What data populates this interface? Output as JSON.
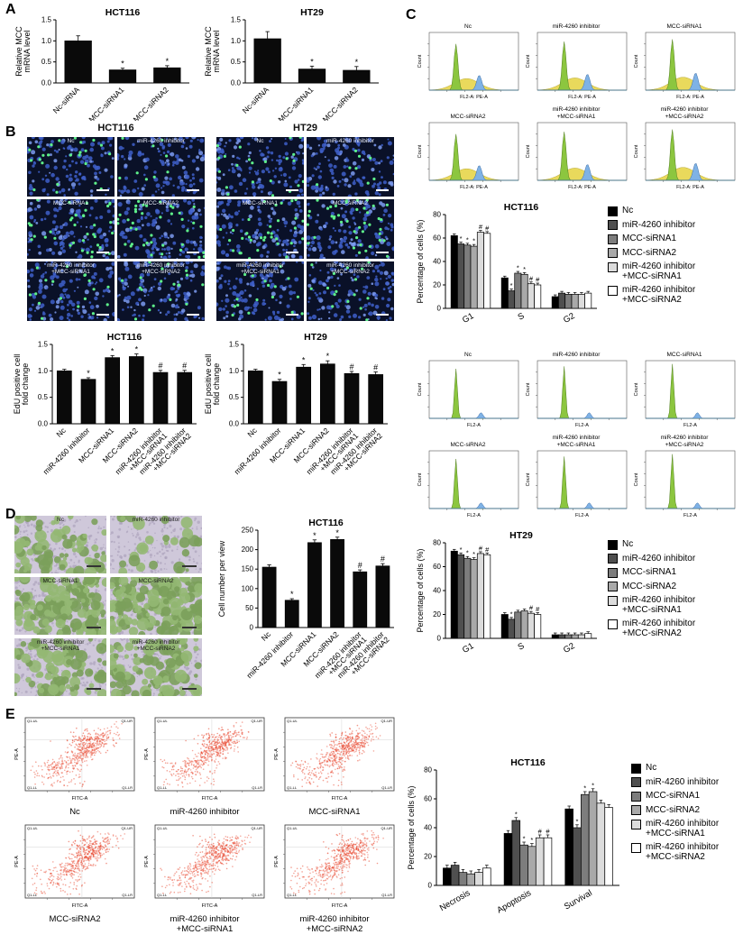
{
  "panels": {
    "A": "A",
    "B": "B",
    "C": "C",
    "D": "D",
    "E": "E"
  },
  "conditions": [
    "Nc",
    "miR-4260 inhibitor",
    "MCC-siRNA1",
    "MCC-siRNA2",
    "miR-4260 inhibitor\n+MCC-siRNA1",
    "miR-4260 inhibitor\n+MCC-siRNA2"
  ],
  "series_colors": [
    "#000000",
    "#4f4f4f",
    "#7d7d7d",
    "#a9a9a9",
    "#dcdcdc",
    "#ffffff"
  ],
  "panelB": {
    "col_titles": [
      "HCT116",
      "HT29"
    ]
  },
  "flow_cycle": {
    "ylabel": "Count",
    "xlabel_hct": "FL2-A: PE-A",
    "xlabel_ht": "FL2-A"
  },
  "flow_apoptosis": {
    "xlabel": "FITC-A",
    "ylabel": "PE-A",
    "quadrants": [
      "Q1-UL",
      "Q1-UR",
      "Q1-LL",
      "Q1-LR"
    ]
  },
  "chart_data": [
    {
      "id": "A-HCT116",
      "type": "bar",
      "title": "HCT116",
      "ylabel": "Relative MCC\nmRNA level",
      "ylim": [
        0,
        1.5
      ],
      "yticks": [
        "0.0",
        "0.5",
        "1.0",
        "1.5"
      ],
      "categories": [
        "Nc-siRNA",
        "MCC-siRNA1",
        "MCC-siRNA2"
      ],
      "values": [
        1.0,
        0.31,
        0.36
      ],
      "errors": [
        0.12,
        0.04,
        0.05
      ],
      "annotations": [
        "",
        "*",
        "*"
      ],
      "ml": 46,
      "mt": 16,
      "mb": 42,
      "rot": 45
    },
    {
      "id": "A-HT29",
      "type": "bar",
      "title": "HT29",
      "ylabel": "Relative MCC\nmRNA level",
      "ylim": [
        0,
        1.5
      ],
      "yticks": [
        "0.0",
        "0.5",
        "1.0",
        "1.5"
      ],
      "categories": [
        "Nc-siRNA",
        "MCC-siRNA1",
        "MCC-siRNA2"
      ],
      "values": [
        1.05,
        0.33,
        0.3
      ],
      "errors": [
        0.17,
        0.07,
        0.09
      ],
      "annotations": [
        "",
        "*",
        "*"
      ],
      "ml": 46,
      "mt": 16,
      "mb": 42,
      "rot": 45
    },
    {
      "id": "B-HCT116",
      "type": "bar",
      "title": "HCT116",
      "ylabel": "EdU positive cell\nfold change",
      "ylim": [
        0,
        1.5
      ],
      "yticks": [
        "0.0",
        "0.5",
        "1.0",
        "1.5"
      ],
      "categories": [
        "Nc",
        "miR-4260 inhibitor",
        "MCC-siRNA1",
        "MCC-siRNA2",
        "miR-4260 inhibitor\n+MCC-siRNA1",
        "miR-4260 inhibitor\n+MCC-siRNA2"
      ],
      "values": [
        1.0,
        0.84,
        1.25,
        1.27,
        0.97,
        0.97
      ],
      "errors": [
        0.03,
        0.03,
        0.04,
        0.05,
        0.04,
        0.04
      ],
      "annotations": [
        "",
        "*",
        "*",
        "*",
        "#",
        "#"
      ],
      "ml": 44,
      "mt": 16,
      "mb": 92,
      "rot": 45
    },
    {
      "id": "B-HT29",
      "type": "bar",
      "title": "HT29",
      "ylabel": "EdU positive cell\nfold change",
      "ylim": [
        0,
        1.5
      ],
      "yticks": [
        "0.0",
        "0.5",
        "1.0",
        "1.5"
      ],
      "categories": [
        "Nc",
        "miR-4260 inhibitor",
        "MCC-siRNA1",
        "MCC-siRNA2",
        "miR-4260 inhibitor\n+MCC-siRNA1",
        "miR-4260 inhibitor\n+MCC-siRNA2"
      ],
      "values": [
        1.0,
        0.8,
        1.07,
        1.13,
        0.95,
        0.93
      ],
      "errors": [
        0.03,
        0.04,
        0.05,
        0.06,
        0.04,
        0.05
      ],
      "annotations": [
        "",
        "*",
        "*",
        "*",
        "#",
        "#"
      ],
      "ml": 44,
      "mt": 16,
      "mb": 92,
      "rot": 45
    },
    {
      "id": "C-HCT116",
      "type": "grouped_bar",
      "title": "HCT116",
      "ylabel": "Percentage of cells (%)",
      "ylim": [
        0,
        80
      ],
      "yticks": [
        "0",
        "20",
        "40",
        "60",
        "80"
      ],
      "categories": [
        "G1",
        "S",
        "G2"
      ],
      "err": 1.5,
      "series": [
        {
          "name": "Nc",
          "values": [
            62,
            26,
            10
          ],
          "ann": [
            "",
            "",
            ""
          ]
        },
        {
          "name": "miR-4260 inhibitor",
          "values": [
            55,
            15,
            13
          ],
          "ann": [
            "*",
            "*",
            ""
          ]
        },
        {
          "name": "MCC-siRNA1",
          "values": [
            54,
            30,
            12
          ],
          "ann": [
            "*",
            "*",
            ""
          ]
        },
        {
          "name": "MCC-siRNA2",
          "values": [
            53,
            29,
            12
          ],
          "ann": [
            "*",
            "*",
            ""
          ]
        },
        {
          "name": "miR-4260 inhibitor\n+MCC-siRNA1",
          "values": [
            65,
            21,
            12
          ],
          "ann": [
            "#",
            "#",
            ""
          ]
        },
        {
          "name": "miR-4260 inhibitor\n+MCC-siRNA2",
          "values": [
            64,
            20,
            13
          ],
          "ann": [
            "#",
            "#",
            ""
          ]
        }
      ],
      "ml": 36,
      "mt": 14,
      "mb": 28,
      "rot": 30
    },
    {
      "id": "C-HT29",
      "type": "grouped_bar",
      "title": "HT29",
      "ylabel": "Percentage of cells (%)",
      "ylim": [
        0,
        80
      ],
      "yticks": [
        "0",
        "20",
        "40",
        "60",
        "80"
      ],
      "categories": [
        "G1",
        "S",
        "G2"
      ],
      "err": 1.5,
      "series": [
        {
          "name": "Nc",
          "values": [
            73,
            20,
            3
          ],
          "ann": [
            "",
            "",
            ""
          ]
        },
        {
          "name": "miR-4260 inhibitor",
          "values": [
            70,
            16,
            3
          ],
          "ann": [
            "*",
            "*",
            ""
          ]
        },
        {
          "name": "MCC-siRNA1",
          "values": [
            67,
            22,
            3
          ],
          "ann": [
            "*",
            "",
            ""
          ]
        },
        {
          "name": "MCC-siRNA2",
          "values": [
            66,
            23,
            3
          ],
          "ann": [
            "*",
            "",
            ""
          ]
        },
        {
          "name": "miR-4260 inhibitor\n+MCC-siRNA1",
          "values": [
            71,
            21,
            3
          ],
          "ann": [
            "#",
            "#",
            ""
          ]
        },
        {
          "name": "miR-4260 inhibitor\n+MCC-siRNA2",
          "values": [
            70,
            20,
            4
          ],
          "ann": [
            "#",
            "#",
            ""
          ]
        }
      ],
      "ml": 36,
      "mt": 14,
      "mb": 32,
      "rot": 30
    },
    {
      "id": "D-HCT116",
      "type": "bar",
      "title": "HCT116",
      "ylabel": "Cell number per view",
      "ylim": [
        0,
        250
      ],
      "yticks": [
        "0",
        "50",
        "100",
        "150",
        "200",
        "250"
      ],
      "categories": [
        "Nc",
        "miR-4260 inhibitor",
        "MCC-siRNA1",
        "MCC-siRNA2",
        "miR-4260 inhibitor\n+MCC-siRNA1",
        "miR-4260 inhibitor\n+MCC-siRNA2"
      ],
      "values": [
        155,
        70,
        218,
        226,
        143,
        158
      ],
      "errors": [
        6,
        4,
        7,
        6,
        5,
        6
      ],
      "annotations": [
        "",
        "*",
        "*",
        "*",
        "#",
        "#"
      ],
      "ml": 48,
      "mt": 14,
      "mb": 94,
      "rot": 45
    },
    {
      "id": "E-HCT116",
      "type": "grouped_bar",
      "title": "HCT116",
      "ylabel": "Percentage of cells (%)",
      "ylim": [
        0,
        80
      ],
      "yticks": [
        "0",
        "20",
        "40",
        "60",
        "80"
      ],
      "categories": [
        "Necrosis",
        "Apoptosis",
        "Survival"
      ],
      "err": 2,
      "series": [
        {
          "name": "Nc",
          "values": [
            12,
            36,
            53
          ],
          "ann": [
            "",
            "",
            ""
          ]
        },
        {
          "name": "miR-4260 inhibitor",
          "values": [
            14,
            45,
            40
          ],
          "ann": [
            "",
            "*",
            "*"
          ]
        },
        {
          "name": "MCC-siRNA1",
          "values": [
            9,
            28,
            63
          ],
          "ann": [
            "",
            "*",
            "*"
          ]
        },
        {
          "name": "MCC-siRNA2",
          "values": [
            8,
            27,
            65
          ],
          "ann": [
            "",
            "*",
            "*"
          ]
        },
        {
          "name": "miR-4260 inhibitor\n+MCC-siRNA1",
          "values": [
            9,
            33,
            57
          ],
          "ann": [
            "",
            "#",
            ""
          ]
        },
        {
          "name": "miR-4260 inhibitor\n+MCC-siRNA2",
          "values": [
            12,
            33,
            54
          ],
          "ann": [
            "",
            "#",
            ""
          ]
        }
      ],
      "ml": 36,
      "mt": 16,
      "mb": 42,
      "rot": 30
    }
  ]
}
